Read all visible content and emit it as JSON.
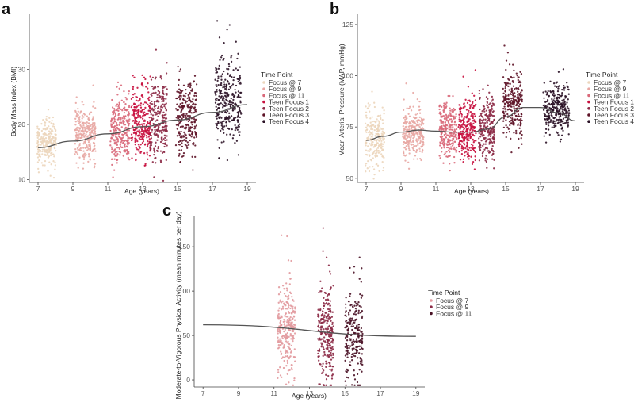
{
  "legend_title": "Time Point",
  "chart_data": [
    {
      "id": "a",
      "type": "scatter",
      "panel_label": "a",
      "xlabel": "Age (years)",
      "ylabel": "Body Mass Index (BMI)",
      "xlim": [
        6.5,
        19.5
      ],
      "ylim": [
        9.5,
        40
      ],
      "xticks": [
        7,
        9,
        11,
        13,
        15,
        17,
        19
      ],
      "yticks": [
        10,
        20,
        30
      ],
      "series": [
        {
          "name": "Focus @ 7",
          "color": "#ecd6bd",
          "x_center": 7.5,
          "x_spread": 0.55,
          "y_mean": 16.5,
          "y_sd": 2.0,
          "n": 230
        },
        {
          "name": "Focus @ 9",
          "color": "#e8a7a3",
          "x_center": 9.7,
          "x_spread": 0.6,
          "y_mean": 18.0,
          "y_sd": 2.6,
          "n": 260
        },
        {
          "name": "Focus @ 11",
          "color": "#d9697a",
          "x_center": 11.7,
          "x_spread": 0.55,
          "y_mean": 19.5,
          "y_sd": 3.2,
          "n": 260
        },
        {
          "name": "Teen Focus 1",
          "color": "#c8103e",
          "x_center": 12.9,
          "x_spread": 0.55,
          "y_mean": 20.0,
          "y_sd": 3.3,
          "n": 260
        },
        {
          "name": "Teen Focus 2",
          "color": "#8c2a46",
          "x_center": 13.9,
          "x_spread": 0.5,
          "y_mean": 20.3,
          "y_sd": 3.4,
          "n": 240
        },
        {
          "name": "Teen Focus 3",
          "color": "#5e1428",
          "x_center": 15.5,
          "x_spread": 0.6,
          "y_mean": 21.5,
          "y_sd": 3.6,
          "n": 260
        },
        {
          "name": "Teen Focus 4",
          "color": "#2b1226",
          "x_center": 17.9,
          "x_spread": 0.75,
          "y_mean": 23.5,
          "y_sd": 3.8,
          "n": 300
        }
      ],
      "trend": {
        "x": [
          7,
          9,
          11,
          13,
          15,
          17,
          19
        ],
        "y": [
          15.8,
          17.0,
          18.3,
          19.6,
          20.8,
          22.2,
          23.6
        ]
      }
    },
    {
      "id": "b",
      "type": "scatter",
      "panel_label": "b",
      "xlabel": "Age (years)",
      "ylabel": "Mean Arterial Pressure (MAP, mmHg)",
      "xlim": [
        6.5,
        19.5
      ],
      "ylim": [
        48,
        130
      ],
      "xticks": [
        7,
        9,
        11,
        13,
        15,
        17,
        19
      ],
      "yticks": [
        50,
        75,
        100,
        125
      ],
      "series": [
        {
          "name": "Focus @ 7",
          "color": "#ecd6bd",
          "x_center": 7.5,
          "x_spread": 0.55,
          "y_mean": 69,
          "y_sd": 7,
          "n": 230
        },
        {
          "name": "Focus @ 9",
          "color": "#e8a7a3",
          "x_center": 9.7,
          "x_spread": 0.6,
          "y_mean": 72,
          "y_sd": 6,
          "n": 260
        },
        {
          "name": "Focus @ 11",
          "color": "#d9697a",
          "x_center": 11.7,
          "x_spread": 0.5,
          "y_mean": 73,
          "y_sd": 7,
          "n": 260
        },
        {
          "name": "Teen Focus 1",
          "color": "#c8103e",
          "x_center": 12.8,
          "x_spread": 0.5,
          "y_mean": 74,
          "y_sd": 7,
          "n": 260
        },
        {
          "name": "Teen Focus 2",
          "color": "#8c2a46",
          "x_center": 13.9,
          "x_spread": 0.45,
          "y_mean": 73,
          "y_sd": 7,
          "n": 240
        },
        {
          "name": "Teen Focus 3",
          "color": "#5e1428",
          "x_center": 15.4,
          "x_spread": 0.55,
          "y_mean": 85,
          "y_sd": 8,
          "n": 260
        },
        {
          "name": "Teen Focus 4",
          "color": "#2b1226",
          "x_center": 17.9,
          "x_spread": 0.75,
          "y_mean": 83,
          "y_sd": 6,
          "n": 300
        }
      ],
      "trend": {
        "x": [
          7,
          8,
          9,
          10,
          11,
          12,
          13,
          14,
          15,
          16,
          17,
          18,
          19
        ],
        "y": [
          68.5,
          70.5,
          72.5,
          73.5,
          73,
          72.5,
          72.5,
          74,
          80,
          84.5,
          84.5,
          82,
          78
        ]
      }
    },
    {
      "id": "c",
      "type": "scatter",
      "panel_label": "c",
      "xlabel": "Age (years)",
      "ylabel": "Moderate-to-Vigorous Physical Activity (mean minutes per day)",
      "xlim": [
        6.5,
        19.5
      ],
      "ylim": [
        -8,
        185
      ],
      "xticks": [
        7,
        9,
        11,
        13,
        15,
        17,
        19
      ],
      "yticks": [
        0,
        50,
        100,
        150
      ],
      "series": [
        {
          "name": "Focus @ 7",
          "color": "#e29a9f",
          "x_center": 11.7,
          "x_spread": 0.5,
          "y_mean": 57,
          "y_sd": 25,
          "n": 280
        },
        {
          "name": "Focus @ 9",
          "color": "#8c2a46",
          "x_center": 13.9,
          "x_spread": 0.45,
          "y_mean": 52,
          "y_sd": 28,
          "n": 260
        },
        {
          "name": "Focus @ 11",
          "color": "#4a1226",
          "x_center": 15.5,
          "x_spread": 0.5,
          "y_mean": 48,
          "y_sd": 26,
          "n": 240
        }
      ],
      "trend": {
        "x": [
          7,
          19
        ],
        "y": [
          62,
          49
        ]
      }
    }
  ]
}
